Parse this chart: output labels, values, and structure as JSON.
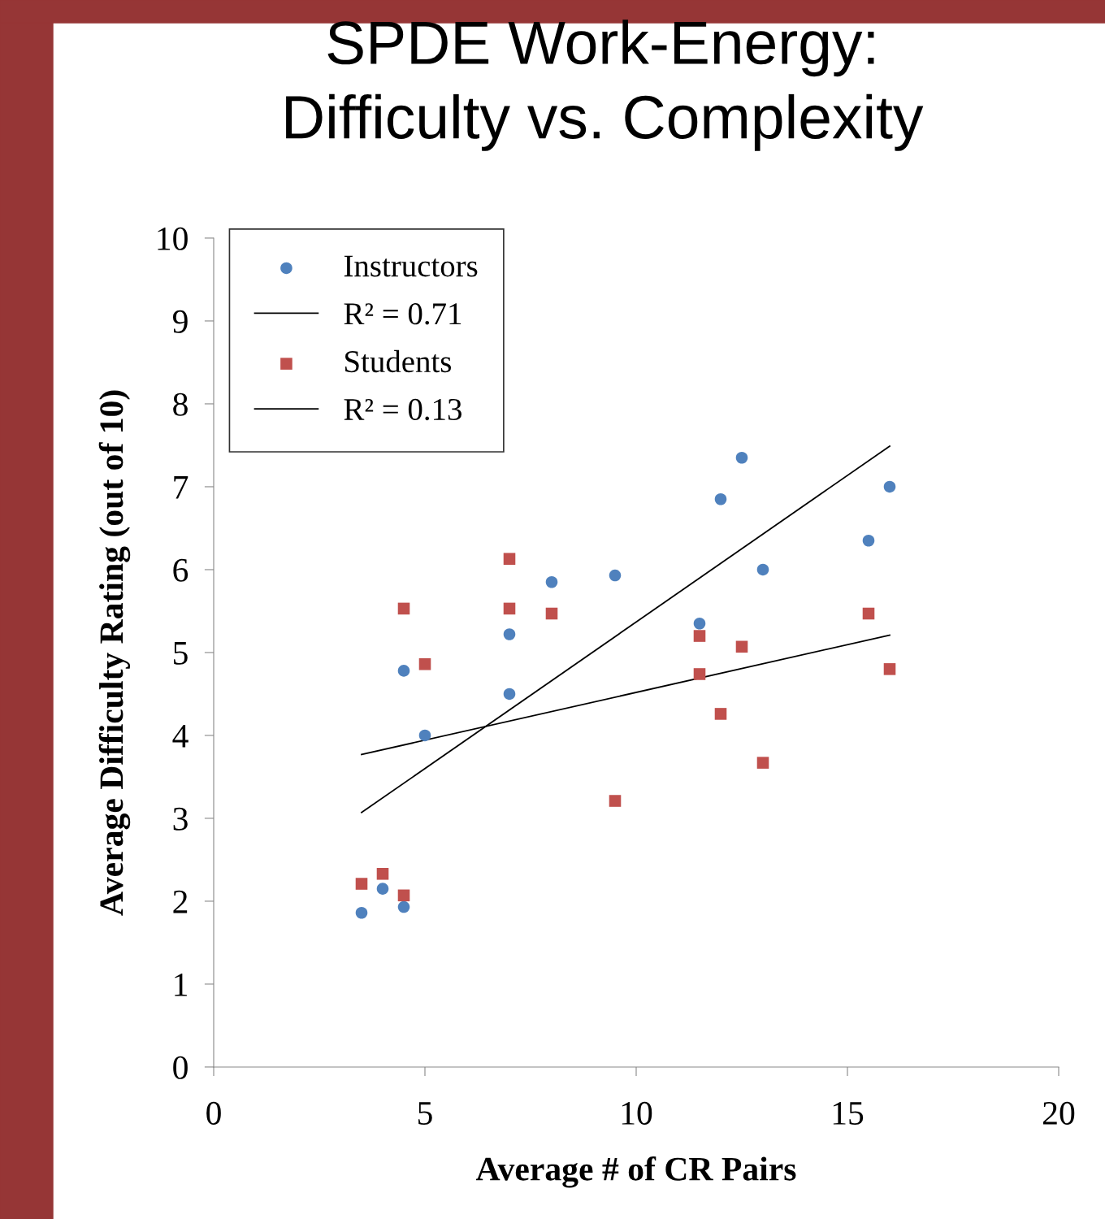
{
  "chart_data": {
    "type": "scatter",
    "title": "SPDE Work-Energy:\nDifficulty vs. Complexity",
    "xlabel": "Average # of CR Pairs",
    "ylabel": "Average Difficulty Rating (out of 10)",
    "xlim": [
      0,
      20
    ],
    "xticks": [
      0,
      5,
      10,
      15,
      20
    ],
    "ylim": [
      0,
      10
    ],
    "yticks": [
      0,
      1,
      2,
      3,
      4,
      5,
      6,
      7,
      8,
      9,
      10
    ],
    "grid": false,
    "legend": "top left",
    "series": [
      {
        "name": "Instructors",
        "color": "#4f81bd",
        "marker": "circle",
        "x": [
          3.5,
          4,
          4.5,
          4.5,
          5,
          7,
          7,
          8,
          9.5,
          11.5,
          12,
          12.5,
          13,
          15.5,
          16
        ],
        "values": [
          1.86,
          2.15,
          1.93,
          4.78,
          4.0,
          5.22,
          4.5,
          5.85,
          5.93,
          5.35,
          6.85,
          7.35,
          6.0,
          6.35,
          7.0
        ]
      },
      {
        "name": "R² = 0.71",
        "type": "line",
        "color": "#000000",
        "marker": "none",
        "x": [
          3.5,
          16
        ],
        "values": [
          3.07,
          7.49
        ]
      },
      {
        "name": "Students",
        "color": "#c0504d",
        "marker": "square",
        "x": [
          3.5,
          4,
          4.5,
          4.5,
          5,
          7,
          7,
          8,
          9.5,
          11.5,
          11.5,
          12,
          12.5,
          13,
          15.5,
          16
        ],
        "values": [
          2.21,
          2.33,
          2.07,
          5.53,
          4.86,
          6.13,
          5.53,
          5.47,
          3.21,
          5.2,
          4.74,
          4.26,
          5.07,
          3.67,
          5.47,
          4.8
        ]
      },
      {
        "name": "R² = 0.13",
        "type": "line",
        "color": "#000000",
        "marker": "none",
        "x": [
          3.5,
          16
        ],
        "values": [
          3.77,
          5.21
        ]
      }
    ]
  }
}
